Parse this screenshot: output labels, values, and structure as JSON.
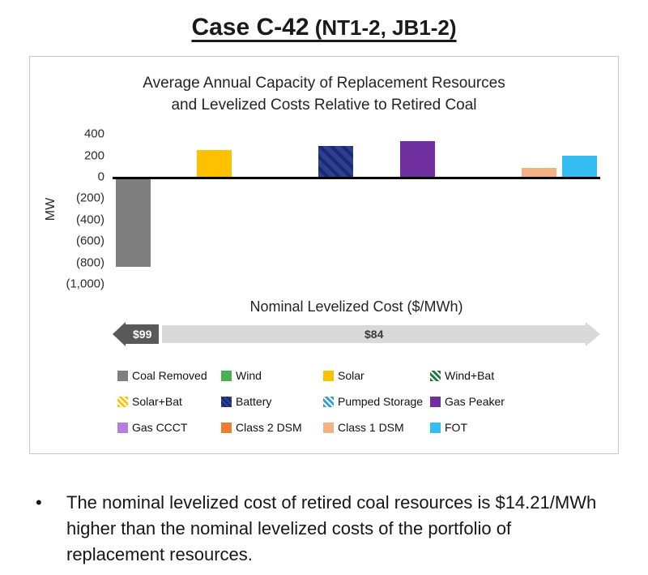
{
  "header": {
    "title_main": "Case C-42",
    "title_suffix": " (NT1-2, JB1-2)"
  },
  "chart": {
    "title_line1": "Average Annual Capacity of Replacement Resources",
    "title_line2": "and Levelized Costs Relative to Retired Coal",
    "y_axis_label": "MW"
  },
  "chart_data": {
    "type": "bar",
    "title": "Average Annual Capacity of Replacement Resources and Levelized Costs Relative to Retired Coal",
    "xlabel": "",
    "ylabel": "MW",
    "ylim": [
      -1000,
      400
    ],
    "grid": false,
    "legend_position": "bottom",
    "yticks": [
      400,
      200,
      0,
      -200,
      -400,
      -600,
      -800,
      -1000
    ],
    "ytick_labels": [
      "400",
      "200",
      "0",
      "(200)",
      "(400)",
      "(600)",
      "(800)",
      "(1,000)"
    ],
    "categories": [
      "Coal Removed",
      "Wind",
      "Solar",
      "Wind+Bat",
      "Solar+Bat",
      "Battery",
      "Pumped Storage",
      "Gas Peaker",
      "Gas CCCT",
      "Class 2 DSM",
      "Class 1 DSM",
      "FOT"
    ],
    "values": [
      -820,
      0,
      250,
      0,
      0,
      290,
      0,
      330,
      0,
      0,
      80,
      200
    ],
    "colors": [
      "#7F7F7F",
      "#4CAF50",
      "#FFC000",
      "#1E7B34",
      "#FFC000",
      "#2D3E93",
      "#2E9BD6",
      "#7030A0",
      "#B57EDC",
      "#ED7D31",
      "#F4B183",
      "#33BDF0"
    ],
    "hatch_colors": [
      null,
      null,
      null,
      "#FFFFFF",
      "#FFFFFF",
      "#1B2A6B",
      "#FFFFFF",
      null,
      null,
      null,
      null,
      null
    ],
    "annotation": {
      "label": "Nominal Levelized Cost ($/MWh)",
      "left_arrow_value": "$99",
      "right_arrow_value": "$84",
      "left_arrow_color": "#595959",
      "right_arrow_color": "#D9D9D9"
    }
  },
  "bullet": {
    "marker": "•",
    "text": "The nominal levelized cost of retired coal resources is $14.21/MWh higher than the nominal levelized costs of the portfolio of replacement resources."
  }
}
